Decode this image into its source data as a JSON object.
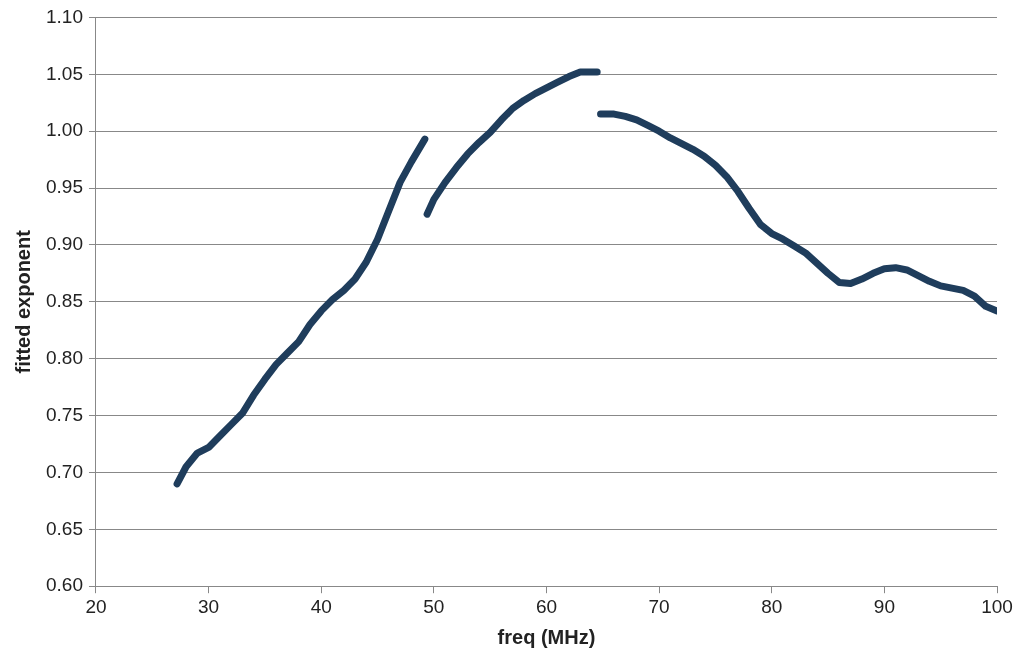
{
  "chart_data": {
    "type": "line",
    "xlabel": "freq (MHz)",
    "ylabel": "fitted exponent",
    "xlim": [
      20,
      100
    ],
    "xticks": [
      20,
      30,
      40,
      50,
      60,
      70,
      80,
      90,
      100
    ],
    "ylim": [
      0.6,
      1.1
    ],
    "yticks": [
      {
        "value": 0.6,
        "label": "0.60"
      },
      {
        "value": 0.65,
        "label": "0.65"
      },
      {
        "value": 0.7,
        "label": "0.70"
      },
      {
        "value": 0.75,
        "label": "0.75"
      },
      {
        "value": 0.8,
        "label": "0.80"
      },
      {
        "value": 0.85,
        "label": "0.85"
      },
      {
        "value": 0.9,
        "label": "0.90"
      },
      {
        "value": 0.95,
        "label": "0.95"
      },
      {
        "value": 1.0,
        "label": "1.00"
      },
      {
        "value": 1.05,
        "label": "1.05"
      },
      {
        "value": 1.1,
        "label": "1.10"
      }
    ],
    "grid": "y",
    "marker": "none",
    "line_style": "solid",
    "series": [
      {
        "color": "#1f3d5c",
        "x": [
          27.2,
          28,
          29,
          30,
          31,
          32,
          33,
          34,
          35,
          36,
          37,
          38,
          39,
          40,
          41,
          42,
          43,
          44,
          45,
          46,
          47,
          48,
          49.2
        ],
        "values": [
          0.69,
          0.705,
          0.717,
          0.722,
          0.732,
          0.742,
          0.752,
          0.768,
          0.782,
          0.795,
          0.805,
          0.815,
          0.83,
          0.842,
          0.852,
          0.86,
          0.87,
          0.885,
          0.905,
          0.93,
          0.955,
          0.973,
          0.993
        ]
      },
      {
        "color": "#1f3d5c",
        "x": [
          49.4,
          50,
          51,
          52,
          53,
          54,
          55,
          56,
          57,
          58,
          59,
          60,
          61,
          62,
          63,
          64.5
        ],
        "values": [
          0.927,
          0.94,
          0.955,
          0.968,
          0.98,
          0.99,
          0.999,
          1.01,
          1.02,
          1.027,
          1.033,
          1.038,
          1.043,
          1.048,
          1.052,
          1.052
        ]
      },
      {
        "color": "#1f3d5c",
        "x": [
          64.8,
          66,
          67,
          68,
          69,
          70,
          71,
          72,
          73,
          74,
          75,
          76,
          77,
          78,
          79,
          80,
          81,
          82,
          83,
          84,
          85,
          86,
          87,
          88,
          89,
          90,
          91,
          92,
          93,
          94,
          95,
          96,
          97,
          98,
          99,
          100
        ],
        "values": [
          1.015,
          1.015,
          1.013,
          1.01,
          1.005,
          1.0,
          0.994,
          0.989,
          0.984,
          0.978,
          0.97,
          0.96,
          0.947,
          0.932,
          0.918,
          0.91,
          0.905,
          0.899,
          0.893,
          0.884,
          0.875,
          0.867,
          0.866,
          0.87,
          0.875,
          0.879,
          0.88,
          0.878,
          0.873,
          0.868,
          0.864,
          0.862,
          0.86,
          0.855,
          0.846,
          0.842
        ]
      }
    ]
  }
}
